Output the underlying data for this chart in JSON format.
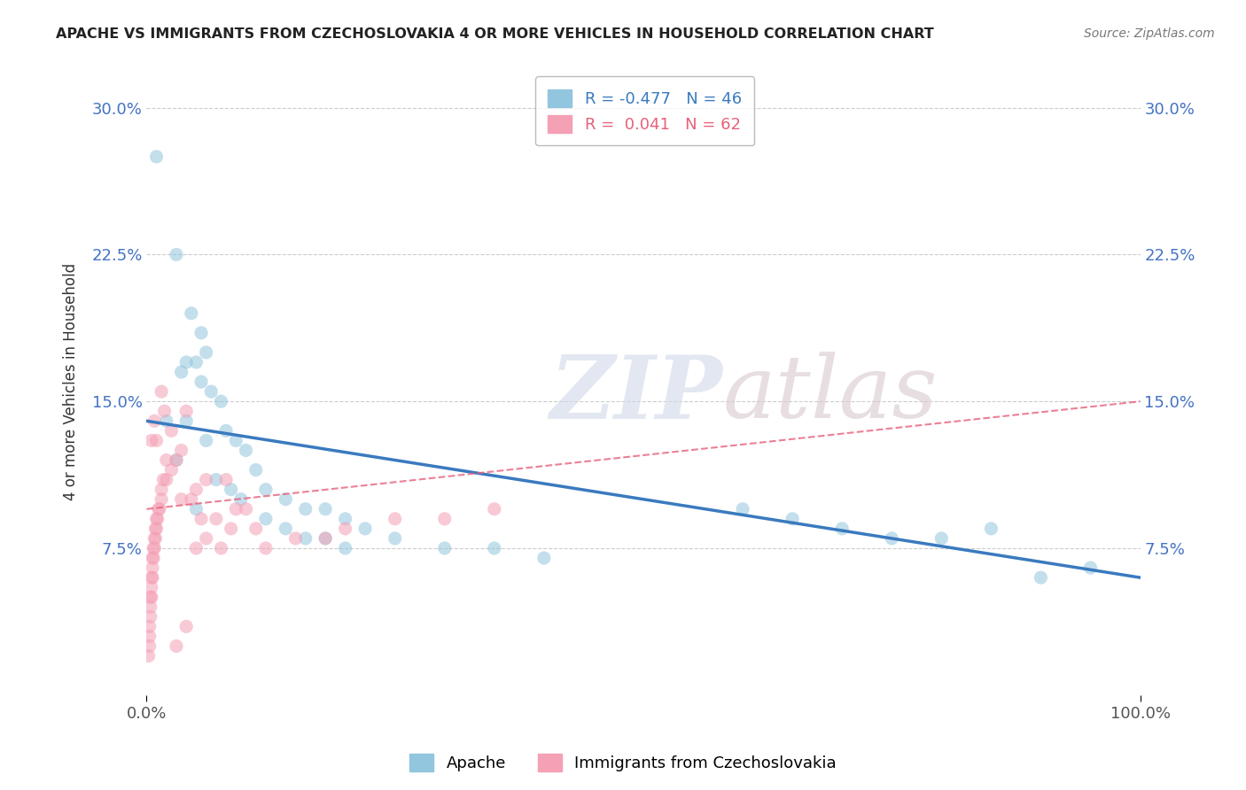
{
  "title": "APACHE VS IMMIGRANTS FROM CZECHOSLOVAKIA 4 OR MORE VEHICLES IN HOUSEHOLD CORRELATION CHART",
  "source": "Source: ZipAtlas.com",
  "ylabel": "4 or more Vehicles in Household",
  "watermark_zip": "ZIP",
  "watermark_atlas": "atlas",
  "legend_blue_label": "Apache",
  "legend_pink_label": "Immigrants from Czechoslovakia",
  "R_blue": -0.477,
  "N_blue": 46,
  "R_pink": 0.041,
  "N_pink": 62,
  "xlim": [
    0,
    100
  ],
  "ylim": [
    0,
    32
  ],
  "ytick_values": [
    7.5,
    15.0,
    22.5,
    30.0
  ],
  "blue_color": "#92c5de",
  "pink_color": "#f4a0b5",
  "blue_line_color": "#3a7abf",
  "pink_line_color": "#e8607a",
  "background_color": "#ffffff",
  "blue_scatter": [
    [
      1.0,
      27.5
    ],
    [
      3.0,
      22.5
    ],
    [
      4.5,
      19.5
    ],
    [
      5.5,
      18.5
    ],
    [
      6.0,
      17.5
    ],
    [
      4.0,
      17.0
    ],
    [
      5.0,
      17.0
    ],
    [
      3.5,
      16.5
    ],
    [
      5.5,
      16.0
    ],
    [
      6.5,
      15.5
    ],
    [
      7.5,
      15.0
    ],
    [
      2.0,
      14.0
    ],
    [
      4.0,
      14.0
    ],
    [
      8.0,
      13.5
    ],
    [
      9.0,
      13.0
    ],
    [
      6.0,
      13.0
    ],
    [
      10.0,
      12.5
    ],
    [
      3.0,
      12.0
    ],
    [
      11.0,
      11.5
    ],
    [
      7.0,
      11.0
    ],
    [
      12.0,
      10.5
    ],
    [
      8.5,
      10.5
    ],
    [
      14.0,
      10.0
    ],
    [
      9.5,
      10.0
    ],
    [
      16.0,
      9.5
    ],
    [
      5.0,
      9.5
    ],
    [
      18.0,
      9.5
    ],
    [
      20.0,
      9.0
    ],
    [
      12.0,
      9.0
    ],
    [
      14.0,
      8.5
    ],
    [
      22.0,
      8.5
    ],
    [
      18.0,
      8.0
    ],
    [
      25.0,
      8.0
    ],
    [
      16.0,
      8.0
    ],
    [
      30.0,
      7.5
    ],
    [
      35.0,
      7.5
    ],
    [
      20.0,
      7.5
    ],
    [
      40.0,
      7.0
    ],
    [
      60.0,
      9.5
    ],
    [
      65.0,
      9.0
    ],
    [
      70.0,
      8.5
    ],
    [
      75.0,
      8.0
    ],
    [
      80.0,
      8.0
    ],
    [
      85.0,
      8.5
    ],
    [
      90.0,
      6.0
    ],
    [
      95.0,
      6.5
    ]
  ],
  "pink_scatter": [
    [
      0.2,
      2.0
    ],
    [
      0.3,
      2.5
    ],
    [
      0.3,
      3.0
    ],
    [
      0.3,
      3.5
    ],
    [
      0.4,
      4.0
    ],
    [
      0.4,
      4.5
    ],
    [
      0.4,
      5.0
    ],
    [
      0.5,
      5.0
    ],
    [
      0.5,
      5.5
    ],
    [
      0.5,
      6.0
    ],
    [
      0.6,
      6.0
    ],
    [
      0.6,
      6.5
    ],
    [
      0.6,
      7.0
    ],
    [
      0.7,
      7.0
    ],
    [
      0.7,
      7.5
    ],
    [
      0.8,
      7.5
    ],
    [
      0.8,
      8.0
    ],
    [
      0.9,
      8.0
    ],
    [
      0.9,
      8.5
    ],
    [
      1.0,
      8.5
    ],
    [
      1.0,
      9.0
    ],
    [
      1.1,
      9.0
    ],
    [
      1.2,
      9.5
    ],
    [
      1.3,
      9.5
    ],
    [
      1.5,
      10.0
    ],
    [
      1.5,
      10.5
    ],
    [
      1.7,
      11.0
    ],
    [
      2.0,
      11.0
    ],
    [
      2.5,
      11.5
    ],
    [
      2.0,
      12.0
    ],
    [
      3.0,
      12.0
    ],
    [
      3.5,
      12.5
    ],
    [
      0.5,
      13.0
    ],
    [
      1.0,
      13.0
    ],
    [
      2.5,
      13.5
    ],
    [
      0.8,
      14.0
    ],
    [
      1.8,
      14.5
    ],
    [
      4.0,
      14.5
    ],
    [
      1.5,
      15.5
    ],
    [
      3.5,
      10.0
    ],
    [
      4.5,
      10.0
    ],
    [
      5.0,
      10.5
    ],
    [
      6.0,
      11.0
    ],
    [
      8.0,
      11.0
    ],
    [
      5.5,
      9.0
    ],
    [
      7.0,
      9.0
    ],
    [
      9.0,
      9.5
    ],
    [
      10.0,
      9.5
    ],
    [
      6.0,
      8.0
    ],
    [
      8.5,
      8.5
    ],
    [
      11.0,
      8.5
    ],
    [
      5.0,
      7.5
    ],
    [
      7.5,
      7.5
    ],
    [
      12.0,
      7.5
    ],
    [
      15.0,
      8.0
    ],
    [
      18.0,
      8.0
    ],
    [
      20.0,
      8.5
    ],
    [
      25.0,
      9.0
    ],
    [
      30.0,
      9.0
    ],
    [
      35.0,
      9.5
    ],
    [
      3.0,
      2.5
    ],
    [
      4.0,
      3.5
    ]
  ],
  "blue_line_x": [
    0,
    100
  ],
  "blue_line_y": [
    14.0,
    6.0
  ],
  "pink_line_x": [
    0,
    100
  ],
  "pink_line_y": [
    9.5,
    15.0
  ]
}
